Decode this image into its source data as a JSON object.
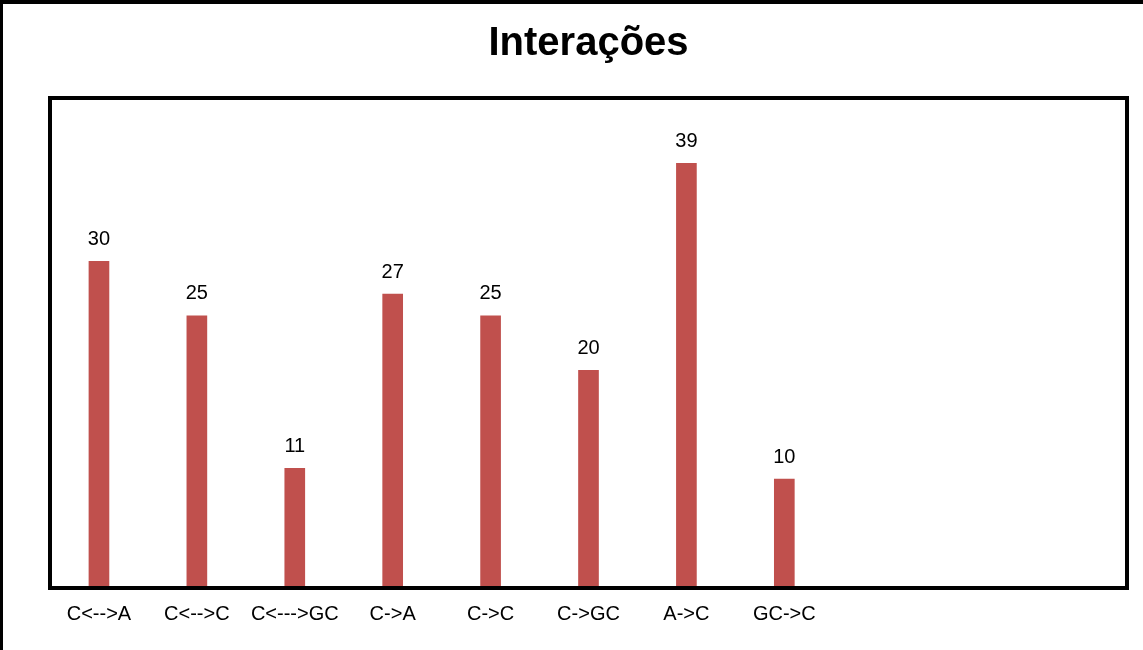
{
  "chart_data": {
    "type": "bar",
    "title": "Interações",
    "categories": [
      "C<-->A",
      "C<-->C",
      "C<--->GC",
      "C->A",
      "C->C",
      "C->GC",
      "A->C",
      "GC->C",
      null,
      null,
      null
    ],
    "values": [
      30,
      25,
      11,
      27,
      25,
      20,
      39,
      10,
      null,
      null,
      null
    ],
    "color": "#c0504d",
    "data_labels": true,
    "grid": false,
    "legend": false
  }
}
